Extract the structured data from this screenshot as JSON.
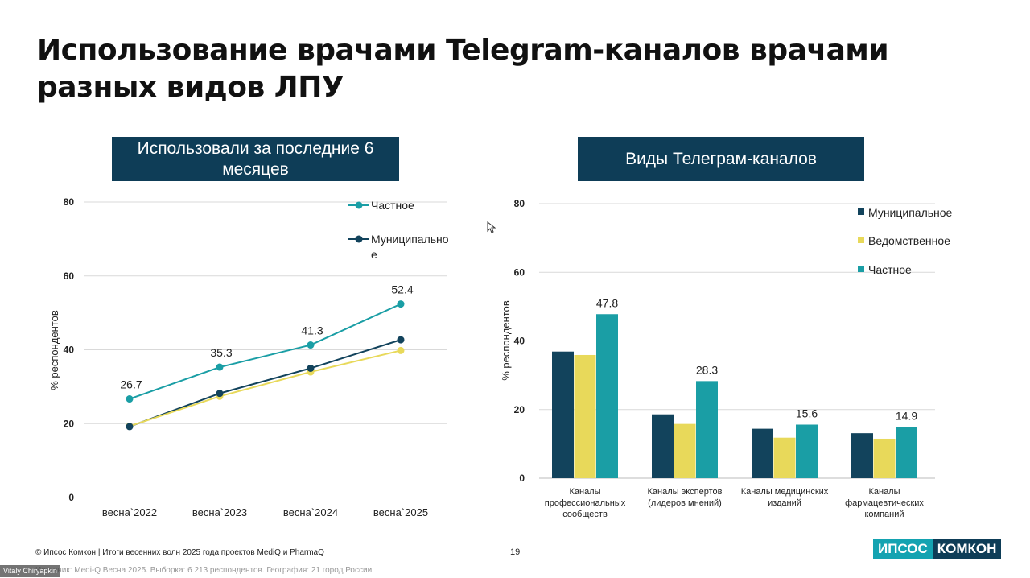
{
  "title": "Использование врачами Telegram-каналов врачами разных видов ЛПУ",
  "left_panel": {
    "header": "Использовали за последние 6 месяцев"
  },
  "right_panel": {
    "header": "Виды Телеграм-каналов"
  },
  "footer": {
    "source": "© Ипсос Комкон | Итоги весенних волн 2025 года проектов MediQ и PharmaQ",
    "note": "Источник: Medi-Q Весна 2025. Выборка: 6 213 респондентов. География: 21 город России",
    "page": "19",
    "brand_left": "ИПСОС",
    "brand_right": "КОМКОН",
    "user": "Vitaly Chiryapkin"
  },
  "colors": {
    "header_bg": "#0e3d57",
    "private": "#1a9ea5",
    "municipal": "#12435c",
    "departmental": "#e8d95a"
  },
  "chart_data": [
    {
      "type": "line",
      "xlabel": "",
      "ylabel": "% респондентов",
      "ylim": [
        0,
        80
      ],
      "yticks": [
        0,
        20,
        40,
        60,
        80
      ],
      "categories": [
        "весна`2022",
        "весна`2023",
        "весна`2024",
        "весна`2025"
      ],
      "legend_position": "top-right",
      "series": [
        {
          "name": "Частное",
          "values": [
            26.7,
            35.3,
            41.3,
            52.4
          ],
          "labels": [
            "26.7",
            "35.3",
            "41.3",
            "52.4"
          ]
        },
        {
          "name": "Муниципальное",
          "values": [
            19.2,
            28.2,
            35.0,
            42.7
          ]
        },
        {
          "name": "",
          "values": [
            19.3,
            27.4,
            34.0,
            39.8
          ]
        }
      ]
    },
    {
      "type": "bar",
      "xlabel": "",
      "ylabel": "% респондентов",
      "ylim": [
        0,
        80
      ],
      "yticks": [
        0,
        20,
        40,
        60,
        80
      ],
      "legend_position": "top-right",
      "categories": [
        [
          "Каналы",
          "профессиональных",
          "сообществ"
        ],
        [
          "Каналы экспертов",
          "(лидеров мнений)"
        ],
        [
          "Каналы медицинских",
          "изданий"
        ],
        [
          "Каналы",
          "фармацевтических",
          "компаний"
        ]
      ],
      "series": [
        {
          "name": "Муниципальное",
          "values": [
            36.9,
            18.6,
            14.4,
            13.1
          ]
        },
        {
          "name": "Ведомственное",
          "values": [
            35.9,
            15.8,
            11.8,
            11.5
          ]
        },
        {
          "name": "Частное",
          "values": [
            47.8,
            28.3,
            15.6,
            14.9
          ],
          "labels": [
            "47.8",
            "28.3",
            "15.6",
            "14.9"
          ]
        }
      ]
    }
  ]
}
